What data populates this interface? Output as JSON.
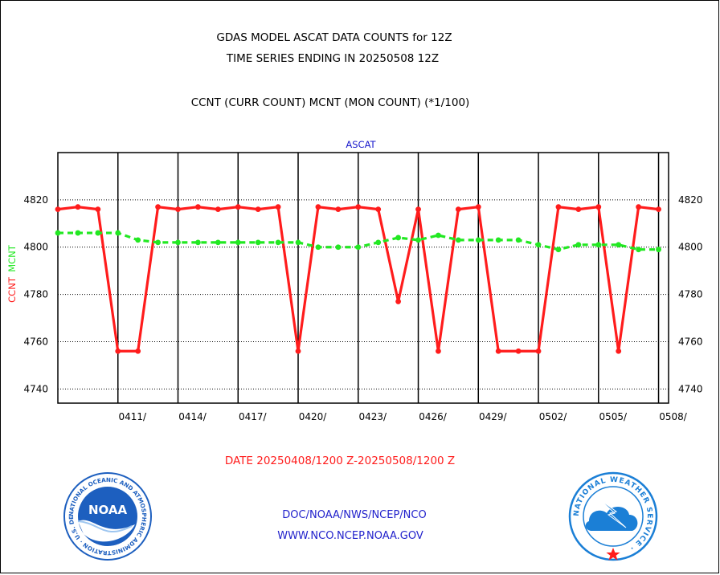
{
  "chart_data": {
    "type": "line",
    "title": "GDAS MODEL ASCAT DATA COUNTS for 12Z",
    "subtitle": "TIME SERIES ENDING IN 20250508 12Z",
    "description_line": "CCNT (CURR COUNT) MCNT (MON COUNT) (*1/100)",
    "panel_label": "ASCAT",
    "ylabel_left_1": "CCNT",
    "ylabel_left_2": "MCNT",
    "xlabel": "DATE 20250408/1200 Z-20250508/1200 Z",
    "ylim": [
      4734,
      4840
    ],
    "xlim": [
      0,
      30.5
    ],
    "yticks": [
      4740,
      4760,
      4780,
      4800,
      4820
    ],
    "ytick_labels": [
      "4740",
      "4760",
      "4780",
      "4800",
      "4820"
    ],
    "xtick_labels": [
      "0411/",
      "0414/",
      "0417/",
      "0420/",
      "0423/",
      "0426/",
      "0429/",
      "0502/",
      "0505/",
      "0508/"
    ],
    "x": [
      0,
      1,
      2,
      3,
      4,
      5,
      6,
      7,
      8,
      9,
      10,
      11,
      12,
      13,
      14,
      15,
      16,
      17,
      18,
      19,
      20,
      21,
      22,
      23,
      24,
      25,
      26,
      27,
      28,
      29,
      30
    ],
    "series": [
      {
        "name": "CCNT",
        "color": "#ff1c1c",
        "style": "solid",
        "values": [
          4816,
          4817,
          4816,
          4756,
          4756,
          4817,
          4816,
          4817,
          4816,
          4817,
          4816,
          4817,
          4756,
          4817,
          4816,
          4817,
          4816,
          4777,
          4816,
          4756,
          4816,
          4817,
          4756,
          4756,
          4756,
          4817,
          4816,
          4817,
          4756,
          4817,
          4816
        ]
      },
      {
        "name": "MCNT",
        "color": "#22e822",
        "style": "dashed",
        "values": [
          4806,
          4806,
          4806,
          4806,
          4803,
          4802,
          4802,
          4802,
          4802,
          4802,
          4802,
          4802,
          4802,
          4800,
          4800,
          4800,
          4802,
          4804,
          4803,
          4805,
          4803,
          4803,
          4803,
          4803,
          4801,
          4799,
          4801,
          4801,
          4801,
          4799,
          4799
        ]
      }
    ]
  },
  "footer": {
    "link_1": "DOC/NOAA/NWS/NCEP/NCO",
    "link_2": "WWW.NCO.NCEP.NOAA.GOV"
  },
  "logos": {
    "noaa_wordmark": "NOAA",
    "noaa_ring_text": "NATIONAL OCEANIC AND ATMOSPHERIC ADMINISTRATION · U.S. DEPARTMENT OF COMMERCE ·",
    "nws_ring_text": "NATIONAL WEATHER SERVICE ·"
  },
  "colors": {
    "ccnt": "#ff1c1c",
    "mcnt": "#22e822",
    "text": "#000000",
    "panel_label": "#1a1acc",
    "footer_link": "#2222cc",
    "xlabel": "#ff1c1c",
    "noaa_blue": "#1d5fbf",
    "nws_blue": "#1b7fd6"
  }
}
